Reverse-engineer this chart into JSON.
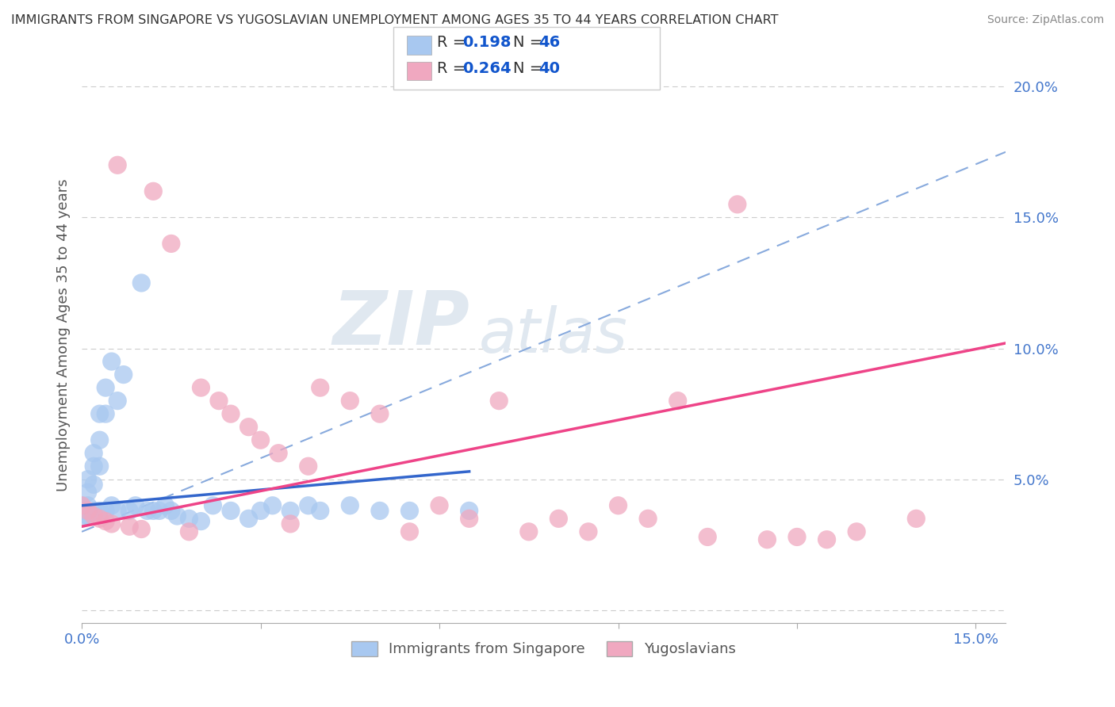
{
  "title": "IMMIGRANTS FROM SINGAPORE VS YUGOSLAVIAN UNEMPLOYMENT AMONG AGES 35 TO 44 YEARS CORRELATION CHART",
  "source": "Source: ZipAtlas.com",
  "ylabel": "Unemployment Among Ages 35 to 44 years",
  "xlim": [
    0.0,
    0.155
  ],
  "ylim": [
    -0.005,
    0.215
  ],
  "xtick_positions": [
    0.0,
    0.03,
    0.06,
    0.09,
    0.12,
    0.15
  ],
  "xtick_labels": [
    "0.0%",
    "",
    "",
    "",
    "",
    "15.0%"
  ],
  "ytick_positions": [
    0.0,
    0.05,
    0.1,
    0.15,
    0.2
  ],
  "ytick_labels": [
    "",
    "5.0%",
    "10.0%",
    "15.0%",
    "20.0%"
  ],
  "legend_labels": [
    "Immigrants from Singapore",
    "Yugoslavians"
  ],
  "singapore_color": "#a8c8f0",
  "yugoslavian_color": "#f0a8c0",
  "singapore_line_color": "#3366cc",
  "yugoslavian_line_color": "#ee4488",
  "dash_line_color": "#88aadd",
  "watermark_color": "#e0e8f0",
  "background_color": "#ffffff",
  "grid_color": "#cccccc",
  "title_color": "#333333",
  "source_color": "#888888",
  "tick_color": "#4477cc",
  "ylabel_color": "#555555",
  "dot_size": 28,
  "dot_alpha": 0.75,
  "singapore_x": [
    0.0,
    0.0,
    0.0,
    0.001,
    0.001,
    0.001,
    0.001,
    0.002,
    0.002,
    0.002,
    0.002,
    0.003,
    0.003,
    0.003,
    0.003,
    0.004,
    0.004,
    0.004,
    0.005,
    0.005,
    0.006,
    0.006,
    0.007,
    0.008,
    0.009,
    0.01,
    0.011,
    0.012,
    0.013,
    0.014,
    0.015,
    0.016,
    0.018,
    0.02,
    0.022,
    0.025,
    0.028,
    0.03,
    0.032,
    0.035,
    0.038,
    0.04,
    0.045,
    0.05,
    0.055,
    0.065
  ],
  "singapore_y": [
    0.04,
    0.038,
    0.035,
    0.05,
    0.045,
    0.04,
    0.036,
    0.06,
    0.055,
    0.048,
    0.038,
    0.075,
    0.065,
    0.055,
    0.038,
    0.085,
    0.075,
    0.038,
    0.095,
    0.04,
    0.08,
    0.038,
    0.09,
    0.038,
    0.04,
    0.125,
    0.038,
    0.038,
    0.038,
    0.04,
    0.038,
    0.036,
    0.035,
    0.034,
    0.04,
    0.038,
    0.035,
    0.038,
    0.04,
    0.038,
    0.04,
    0.038,
    0.04,
    0.038,
    0.038,
    0.038
  ],
  "yugoslavian_x": [
    0.0,
    0.001,
    0.002,
    0.003,
    0.004,
    0.005,
    0.006,
    0.008,
    0.01,
    0.012,
    0.015,
    0.018,
    0.02,
    0.023,
    0.025,
    0.028,
    0.03,
    0.033,
    0.035,
    0.038,
    0.04,
    0.045,
    0.05,
    0.055,
    0.06,
    0.065,
    0.07,
    0.075,
    0.08,
    0.085,
    0.09,
    0.095,
    0.1,
    0.105,
    0.11,
    0.115,
    0.12,
    0.125,
    0.13,
    0.14
  ],
  "yugoslavian_y": [
    0.04,
    0.038,
    0.036,
    0.035,
    0.034,
    0.033,
    0.17,
    0.032,
    0.031,
    0.16,
    0.14,
    0.03,
    0.085,
    0.08,
    0.075,
    0.07,
    0.065,
    0.06,
    0.033,
    0.055,
    0.085,
    0.08,
    0.075,
    0.03,
    0.04,
    0.035,
    0.08,
    0.03,
    0.035,
    0.03,
    0.04,
    0.035,
    0.08,
    0.028,
    0.155,
    0.027,
    0.028,
    0.027,
    0.03,
    0.035
  ],
  "sing_trend_x": [
    0.0,
    0.065
  ],
  "sing_trend_y": [
    0.04,
    0.053
  ],
  "yugo_trend_x": [
    0.0,
    0.155
  ],
  "yugo_trend_y": [
    0.032,
    0.102
  ],
  "dash_trend_x": [
    0.0,
    0.155
  ],
  "dash_trend_y": [
    0.03,
    0.175
  ]
}
